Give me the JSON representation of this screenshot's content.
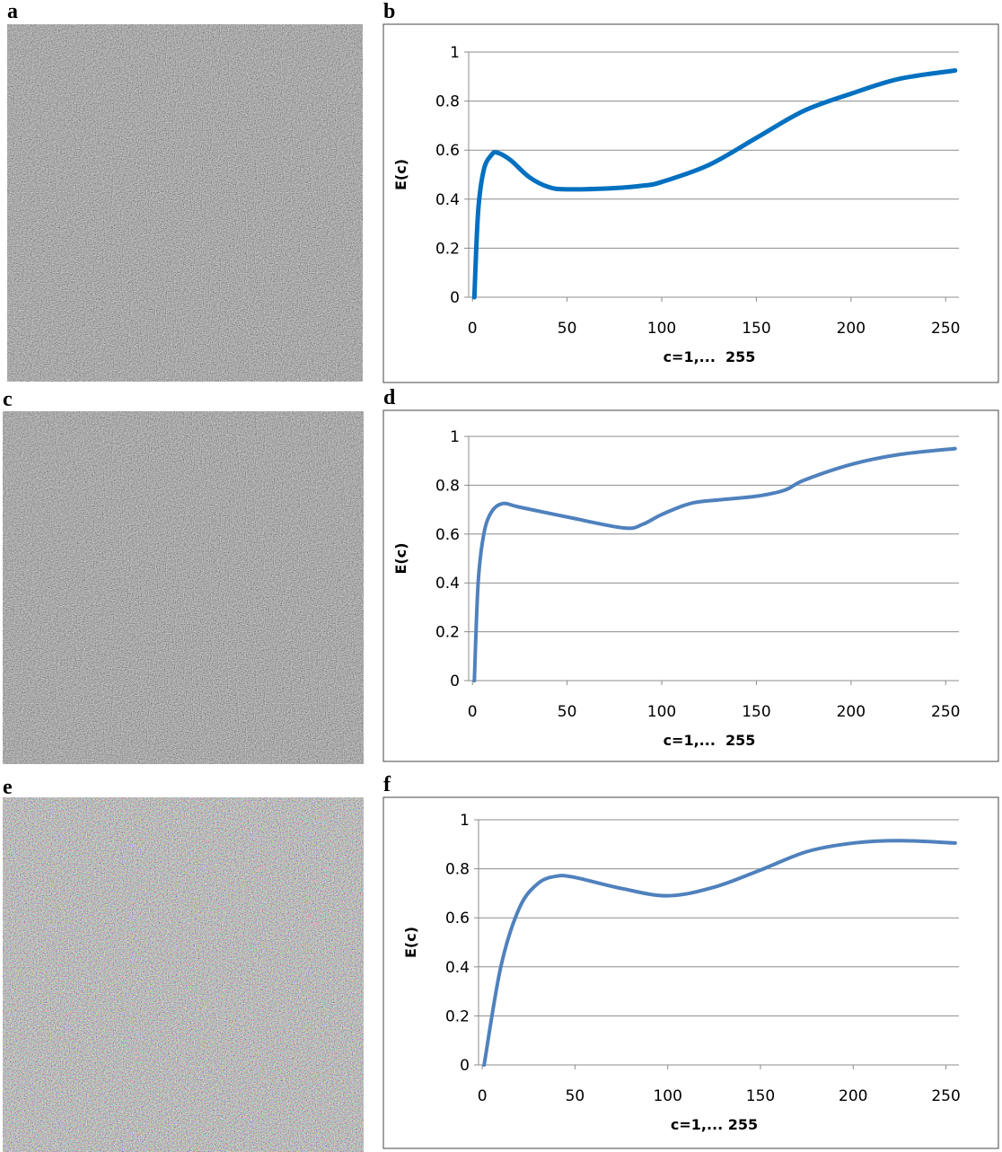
{
  "images": [
    {
      "label": "a"
    },
    {
      "label": "c"
    },
    {
      "label": "e"
    }
  ],
  "chart_data": [
    {
      "type": "line",
      "panel_label": "b",
      "xlabel": "c=1,...  255",
      "ylabel": "E(c)",
      "x": [
        1,
        3,
        6,
        10,
        13,
        20,
        30,
        40,
        50,
        75,
        90,
        100,
        125,
        150,
        175,
        200,
        225,
        255
      ],
      "series": [
        {
          "color": "#0070c0",
          "values": [
            0,
            0.35,
            0.52,
            0.58,
            0.59,
            0.56,
            0.49,
            0.45,
            0.44,
            0.445,
            0.455,
            0.47,
            0.54,
            0.65,
            0.76,
            0.83,
            0.89,
            0.925
          ]
        }
      ],
      "xlim": [
        -2,
        257
      ],
      "xticks": [
        0,
        50,
        100,
        150,
        200,
        250
      ],
      "ylim": [
        0,
        1
      ],
      "yticks": [
        0,
        0.2,
        0.4,
        0.6,
        0.8,
        1
      ],
      "grid": true
    },
    {
      "type": "line",
      "panel_label": "d",
      "xlabel": "c=1,...  255",
      "ylabel": "E(c)",
      "x": [
        1,
        3,
        6,
        10,
        16,
        25,
        50,
        80,
        90,
        100,
        115,
        130,
        150,
        165,
        175,
        200,
        225,
        255
      ],
      "series": [
        {
          "color": "#4f81bd",
          "values": [
            0,
            0.4,
            0.6,
            0.69,
            0.725,
            0.71,
            0.67,
            0.625,
            0.64,
            0.68,
            0.725,
            0.74,
            0.755,
            0.78,
            0.82,
            0.885,
            0.925,
            0.95
          ]
        }
      ],
      "xlim": [
        -2,
        257
      ],
      "xticks": [
        0,
        50,
        100,
        150,
        200,
        250
      ],
      "ylim": [
        0,
        1
      ],
      "yticks": [
        0,
        0.2,
        0.4,
        0.6,
        0.8,
        1
      ],
      "grid": true
    },
    {
      "type": "line",
      "panel_label": "f",
      "xlabel": "c=1,... 255",
      "ylabel": "E(c)",
      "x": [
        1,
        10,
        20,
        30,
        40,
        50,
        75,
        100,
        125,
        150,
        175,
        200,
        225,
        255
      ],
      "series": [
        {
          "color": "#4f81bd",
          "values": [
            0,
            0.4,
            0.64,
            0.74,
            0.77,
            0.765,
            0.72,
            0.69,
            0.725,
            0.795,
            0.87,
            0.905,
            0.915,
            0.905
          ]
        }
      ],
      "xlim": [
        -2,
        257
      ],
      "xticks": [
        0,
        50,
        100,
        150,
        200,
        250
      ],
      "ylim": [
        0,
        1
      ],
      "yticks": [
        0,
        0.2,
        0.4,
        0.6,
        0.8,
        1
      ],
      "grid": true
    }
  ]
}
